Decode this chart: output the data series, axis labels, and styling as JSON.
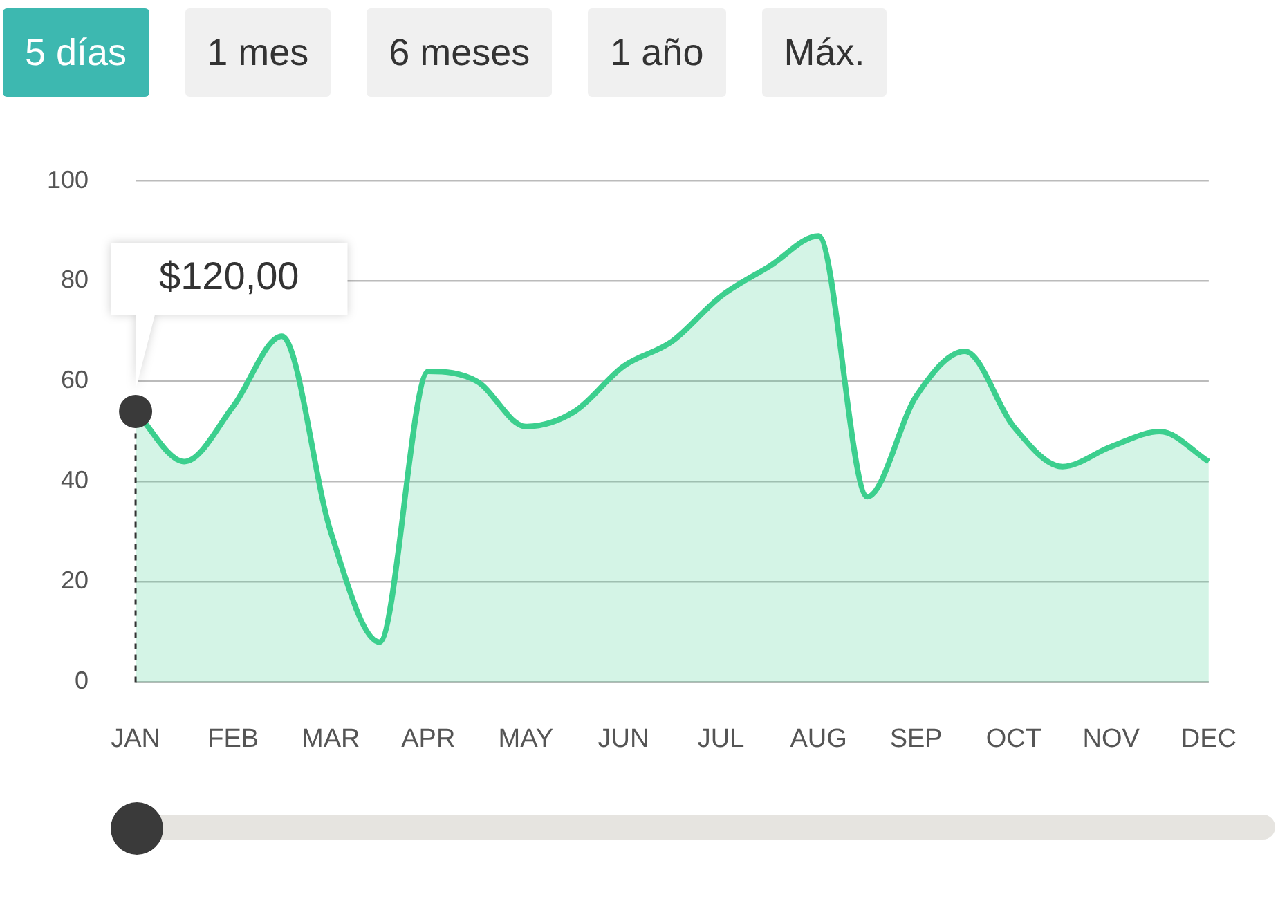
{
  "chart_data": {
    "type": "area",
    "color": "#3ccf8e",
    "marker": "none",
    "grid": "y",
    "categories": [
      "JAN",
      null,
      "FEB",
      null,
      "MAR",
      null,
      "APR",
      null,
      "MAY",
      null,
      "JUN",
      null,
      "JUL",
      null,
      "AUG",
      null,
      "SEP",
      null,
      "OCT",
      null,
      "NOV",
      null,
      "DEC"
    ],
    "values": [
      54,
      44,
      55,
      69,
      30,
      8,
      62,
      60,
      51,
      54,
      63,
      68,
      77,
      83,
      89,
      37,
      57,
      66,
      51,
      43,
      47,
      50,
      44
    ],
    "ylim": [
      0,
      100
    ],
    "yticks": [
      0,
      20,
      40,
      60,
      80,
      100
    ],
    "ref_lines": [
      {
        "axis": "x",
        "value": "JAN",
        "line_style": "dashed",
        "color": "#333333"
      }
    ],
    "annotations": [
      "5 días",
      "1 mes",
      "6 meses",
      "1 año",
      "Máx.",
      {
        "text": "$120,00",
        "x": "JAN",
        "y": 54
      }
    ]
  }
}
